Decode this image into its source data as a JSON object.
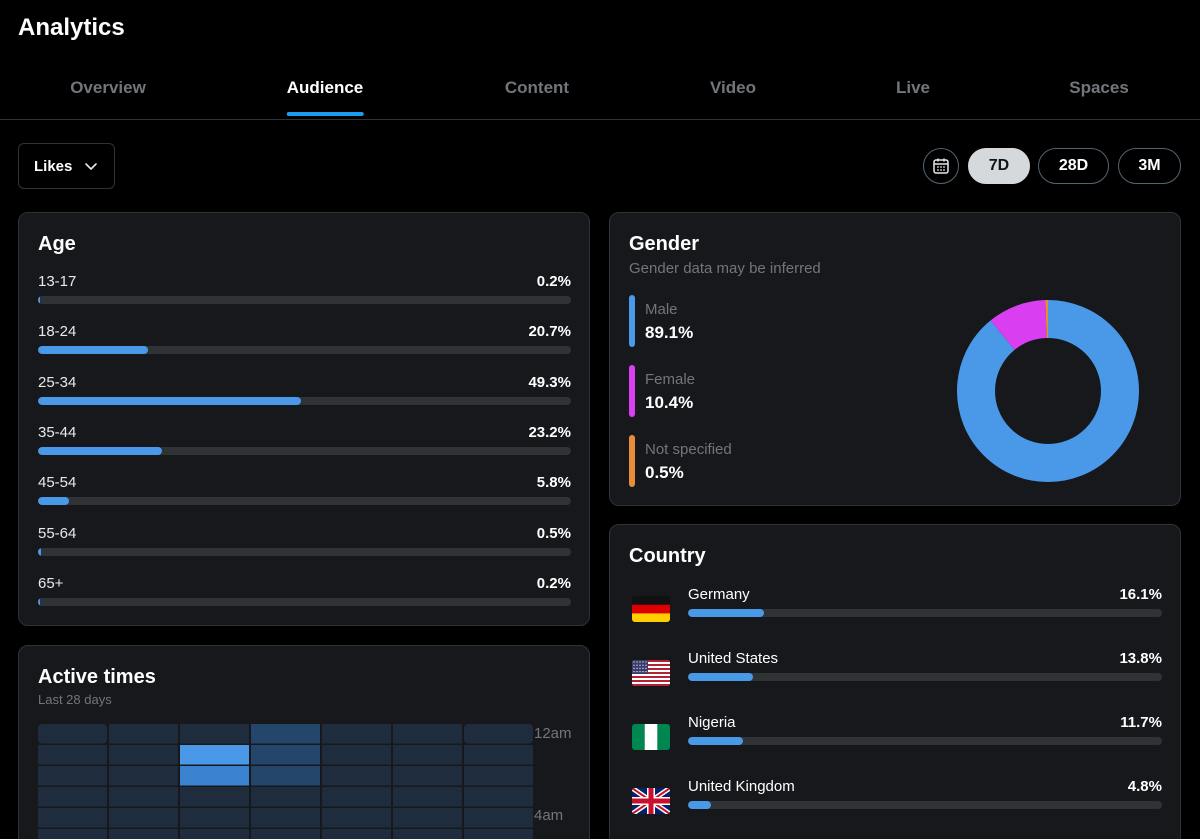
{
  "app": {
    "title": "Analytics"
  },
  "tabs": [
    {
      "label": "Overview",
      "active": false
    },
    {
      "label": "Audience",
      "active": true
    },
    {
      "label": "Content",
      "active": false
    },
    {
      "label": "Video",
      "active": false
    },
    {
      "label": "Live",
      "active": false
    },
    {
      "label": "Spaces",
      "active": false
    }
  ],
  "filter": {
    "selected": "Likes"
  },
  "ranges": {
    "options": [
      "7D",
      "28D",
      "3M"
    ],
    "selected": "7D"
  },
  "age": {
    "title": "Age",
    "rows": [
      {
        "label": "13-17",
        "value": "0.2%",
        "pct": 0.2
      },
      {
        "label": "18-24",
        "value": "20.7%",
        "pct": 20.7
      },
      {
        "label": "25-34",
        "value": "49.3%",
        "pct": 49.3
      },
      {
        "label": "35-44",
        "value": "23.2%",
        "pct": 23.2
      },
      {
        "label": "45-54",
        "value": "5.8%",
        "pct": 5.8
      },
      {
        "label": "55-64",
        "value": "0.5%",
        "pct": 0.5
      },
      {
        "label": "65+",
        "value": "0.2%",
        "pct": 0.2
      }
    ]
  },
  "gender": {
    "title": "Gender",
    "subtitle": "Gender data may be inferred",
    "items": [
      {
        "label": "Male",
        "value": "89.1%",
        "pct": 89.1,
        "color": "#4a99e9"
      },
      {
        "label": "Female",
        "value": "10.4%",
        "pct": 10.4,
        "color": "#d93ef0"
      },
      {
        "label": "Not specified",
        "value": "0.5%",
        "pct": 0.5,
        "color": "#e98c3a"
      }
    ]
  },
  "country": {
    "title": "Country",
    "rows": [
      {
        "name": "Germany",
        "value": "16.1%",
        "pct": 16.1,
        "flag": "germany-flag-icon"
      },
      {
        "name": "United States",
        "value": "13.8%",
        "pct": 13.8,
        "flag": "us-flag-icon"
      },
      {
        "name": "Nigeria",
        "value": "11.7%",
        "pct": 11.7,
        "flag": "nigeria-flag-icon"
      },
      {
        "name": "United Kingdom",
        "value": "4.8%",
        "pct": 4.8,
        "flag": "uk-flag-icon"
      }
    ]
  },
  "active_times": {
    "title": "Active times",
    "subtitle": "Last 28 days",
    "time_labels": [
      "12am",
      "4am"
    ],
    "grid": [
      [
        1,
        1,
        1,
        2,
        1,
        1,
        1
      ],
      [
        1,
        1,
        4,
        2,
        1,
        1,
        1
      ],
      [
        1,
        1,
        3,
        2,
        1,
        1,
        1
      ],
      [
        1,
        1,
        1,
        1,
        1,
        1,
        1
      ],
      [
        1,
        1,
        1,
        1,
        1,
        1,
        1
      ],
      [
        1,
        1,
        1,
        1,
        1,
        1,
        1
      ]
    ]
  }
}
